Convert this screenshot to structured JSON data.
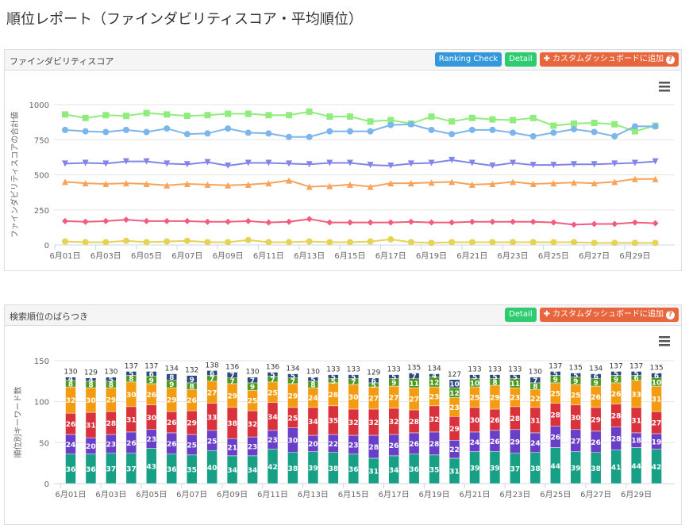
{
  "page_title": "順位レポート（ファインダビリティスコア・平均順位）",
  "panels": [
    {
      "title": "ファインダビリティスコア",
      "buttons": [
        "Ranking Check",
        "Detail",
        "カスタムダッシュボードに追加"
      ]
    },
    {
      "title": "検索順位のばらつき",
      "buttons": [
        "Detail",
        "カスタムダッシュボードに追加"
      ]
    }
  ],
  "chart_data": [
    {
      "type": "line",
      "y_label": "ファインダビリティスコアの合計値",
      "categories": [
        "6月01日",
        null,
        "6月03日",
        null,
        "6月05日",
        null,
        "6月07日",
        null,
        "6月09日",
        null,
        "6月11日",
        null,
        "6月13日",
        null,
        "6月15日",
        null,
        "6月17日",
        null,
        "6月19日",
        null,
        "6月21日",
        null,
        "6月23日",
        null,
        "6月25日",
        null,
        "6月27日",
        null,
        "6月29日",
        null
      ],
      "ylim": [
        0,
        1000
      ],
      "yticks": [
        0,
        250,
        500,
        750,
        1000
      ],
      "grid": true,
      "series": [
        {
          "color": "#90ed7d",
          "marker": "square",
          "values": [
            930,
            905,
            925,
            920,
            940,
            930,
            920,
            925,
            935,
            935,
            925,
            925,
            950,
            915,
            915,
            880,
            890,
            865,
            915,
            880,
            905,
            895,
            890,
            905,
            850,
            865,
            870,
            860,
            810,
            850
          ]
        },
        {
          "color": "#7cb5ec",
          "marker": "circle",
          "values": [
            820,
            810,
            805,
            820,
            805,
            830,
            790,
            795,
            830,
            800,
            795,
            770,
            770,
            810,
            810,
            810,
            855,
            860,
            820,
            790,
            820,
            820,
            800,
            775,
            800,
            825,
            805,
            775,
            845,
            845
          ]
        },
        {
          "color": "#8085e9",
          "marker": "triangle-down",
          "values": [
            580,
            585,
            580,
            595,
            595,
            580,
            575,
            590,
            565,
            585,
            585,
            580,
            575,
            585,
            585,
            570,
            565,
            580,
            585,
            605,
            585,
            565,
            585,
            570,
            570,
            575,
            575,
            580,
            585,
            595
          ]
        },
        {
          "color": "#f7a35c",
          "marker": "triangle",
          "values": [
            450,
            440,
            435,
            440,
            435,
            425,
            435,
            430,
            425,
            430,
            440,
            460,
            415,
            420,
            430,
            415,
            440,
            440,
            445,
            450,
            430,
            435,
            450,
            435,
            440,
            445,
            440,
            450,
            470,
            470
          ]
        },
        {
          "color": "#f15c80",
          "marker": "diamond",
          "values": [
            170,
            165,
            170,
            180,
            170,
            170,
            170,
            165,
            165,
            170,
            160,
            165,
            185,
            160,
            160,
            160,
            160,
            165,
            160,
            160,
            165,
            165,
            165,
            165,
            160,
            145,
            150,
            150,
            160,
            155
          ]
        },
        {
          "color": "#e4d354",
          "marker": "circle",
          "values": [
            25,
            20,
            20,
            30,
            20,
            25,
            30,
            20,
            20,
            35,
            20,
            20,
            25,
            20,
            20,
            25,
            40,
            20,
            15,
            20,
            20,
            20,
            20,
            20,
            20,
            20,
            15,
            15,
            15,
            15
          ]
        }
      ]
    },
    {
      "type": "bar",
      "stacked": true,
      "y_label": "順位別キーワード数",
      "categories": [
        "6月01日",
        null,
        "6月03日",
        null,
        "6月05日",
        null,
        "6月07日",
        null,
        "6月09日",
        null,
        "6月11日",
        null,
        "6月13日",
        null,
        "6月15日",
        null,
        "6月17日",
        null,
        "6月19日",
        null,
        "6月21日",
        null,
        "6月23日",
        null,
        "6月25日",
        null,
        "6月27日",
        null,
        "6月29日",
        null
      ],
      "ylim": [
        0,
        150
      ],
      "yticks": [
        0,
        50,
        100,
        150
      ],
      "grid": true,
      "series": [
        {
          "color": "#17a085",
          "values": [
            36,
            36,
            37,
            37,
            43,
            36,
            35,
            40,
            34,
            34,
            42,
            38,
            39,
            38,
            36,
            31,
            34,
            36,
            35,
            31,
            39,
            39,
            37,
            38,
            44,
            39,
            38,
            41,
            44,
            42
          ]
        },
        {
          "color": "#6a3fc8",
          "values": [
            24,
            20,
            23,
            26,
            23,
            26,
            25,
            25,
            21,
            23,
            23,
            30,
            20,
            22,
            23,
            28,
            26,
            26,
            28,
            22,
            24,
            26,
            29,
            24,
            26,
            27,
            26,
            28,
            18,
            19
          ]
        },
        {
          "color": "#d9323c",
          "values": [
            26,
            31,
            28,
            31,
            30,
            26,
            29,
            33,
            38,
            32,
            34,
            25,
            34,
            35,
            32,
            32,
            32,
            28,
            32,
            29,
            30,
            26,
            28,
            31,
            28,
            30,
            29,
            28,
            31,
            27
          ]
        },
        {
          "color": "#f39c12",
          "values": [
            32,
            30,
            29,
            30,
            26,
            29,
            26,
            27,
            29,
            25,
            25,
            29,
            24,
            28,
            30,
            27,
            27,
            27,
            23,
            23,
            25,
            29,
            23,
            22,
            25,
            25,
            26,
            26,
            33,
            31
          ]
        },
        {
          "color": "#4e9a1e",
          "values": [
            8,
            8,
            8,
            8,
            9,
            9,
            8,
            7,
            7,
            9,
            7,
            7,
            8,
            5,
            7,
            5,
            9,
            11,
            12,
            12,
            10,
            8,
            11,
            8,
            9,
            9,
            9,
            9,
            6,
            10
          ]
        },
        {
          "color": "#2b4a7e",
          "values": [
            4,
            4,
            5,
            5,
            6,
            8,
            9,
            6,
            7,
            7,
            5,
            5,
            5,
            5,
            5,
            6,
            5,
            7,
            4,
            10,
            5,
            5,
            5,
            7,
            5,
            5,
            6,
            5,
            5,
            6
          ]
        }
      ],
      "totals": [
        130,
        129,
        130,
        137,
        137,
        134,
        132,
        138,
        136,
        130,
        136,
        134,
        130,
        133,
        133,
        129,
        133,
        135,
        134,
        127,
        133,
        133,
        133,
        130,
        137,
        135,
        134,
        137,
        137,
        135
      ]
    }
  ]
}
